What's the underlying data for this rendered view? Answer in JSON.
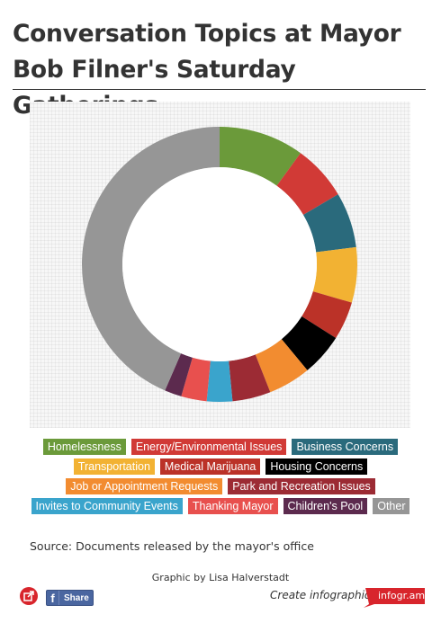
{
  "title": "Conversation Topics at Mayor Bob Filner's Saturday Gatherings",
  "chart_data": {
    "type": "pie",
    "donut": true,
    "title": "Conversation Topics at Mayor Bob Filner's Saturday Gatherings",
    "legend_position": "bottom",
    "series": [
      {
        "name": "Homelessness",
        "value": 10,
        "color": "#6b9a3a"
      },
      {
        "name": "Energy/Environmental Issues",
        "value": 6.5,
        "color": "#d13a36"
      },
      {
        "name": "Business Concerns",
        "value": 6.5,
        "color": "#2a6a7c"
      },
      {
        "name": "Transportation",
        "value": 6.5,
        "color": "#f2b233"
      },
      {
        "name": "Medical Marijuana",
        "value": 4.5,
        "color": "#bb3228"
      },
      {
        "name": "Housing Concerns",
        "value": 5,
        "color": "#000000"
      },
      {
        "name": "Job or Appointment Requests",
        "value": 5,
        "color": "#f28c30"
      },
      {
        "name": "Park and Recreation Issues",
        "value": 4.5,
        "color": "#9c2b34"
      },
      {
        "name": "Invites to Community Events",
        "value": 3,
        "color": "#3aa4cc"
      },
      {
        "name": "Thanking Mayor",
        "value": 3,
        "color": "#e8504e"
      },
      {
        "name": "Children's Pool",
        "value": 2,
        "color": "#5c2a4e"
      },
      {
        "name": "Other",
        "value": 43.5,
        "color": "#969696"
      }
    ]
  },
  "legend_rows": [
    [
      0,
      1,
      2
    ],
    [
      3,
      4,
      5
    ],
    [
      6,
      7
    ],
    [
      8,
      9,
      10,
      11
    ]
  ],
  "source": "Source: Documents released by the mayor's office",
  "credit": "Graphic by Lisa Halverstadt",
  "footer": {
    "share_label": "Share",
    "facebook_glyph": "f",
    "create_label": "Create infographics",
    "brand": "infogr.am",
    "brand_color": "#d8252c",
    "share_color": "#4a66a0"
  },
  "icons": {
    "embed": "embed-icon",
    "facebook": "facebook-icon"
  }
}
